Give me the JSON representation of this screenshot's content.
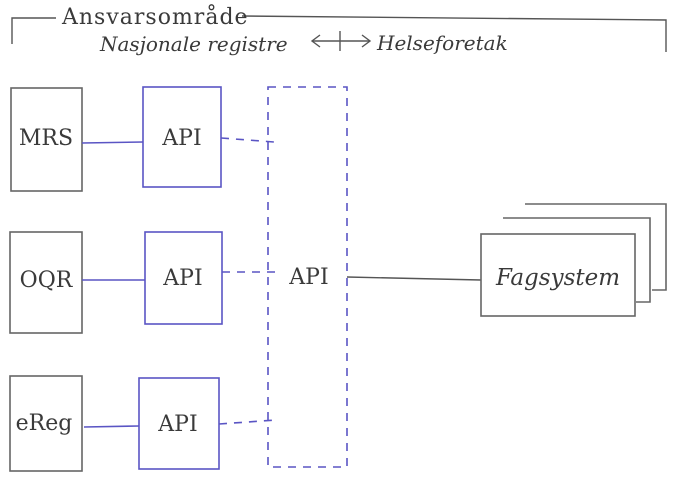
{
  "header": {
    "title": "Ansvarsområde",
    "left_label": "Nasjonale registre",
    "right_label": "Helseforetak",
    "arrow_icon": "double-arrow-icon"
  },
  "registries": [
    {
      "label": "MRS",
      "api_label": "API"
    },
    {
      "label": "OQR",
      "api_label": "API"
    },
    {
      "label": "eReg",
      "api_label": "API"
    }
  ],
  "central_api": {
    "label": "API"
  },
  "target_system": {
    "label": "Fagsystem"
  },
  "colors": {
    "accent": "#5a55c4",
    "ink": "#3a3a3a",
    "line": "#666666"
  }
}
